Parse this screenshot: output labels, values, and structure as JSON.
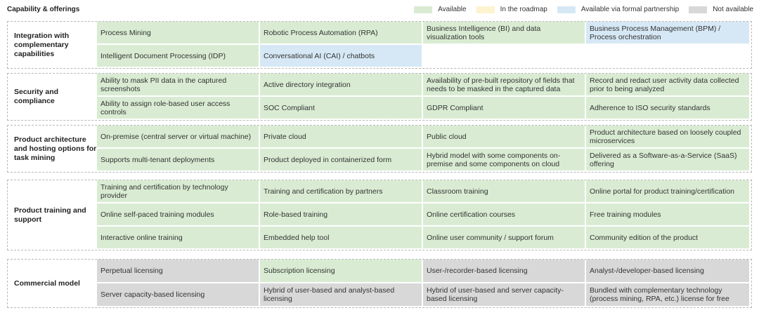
{
  "header": {
    "title": "Capability & offerings",
    "legend": [
      {
        "label": "Available",
        "color": "#d9ecd3"
      },
      {
        "label": "In the roadmap",
        "color": "#fdf3d0"
      },
      {
        "label": "Available via formal partnership",
        "color": "#d6e8f5"
      },
      {
        "label": "Not available",
        "color": "#d8d8d8"
      }
    ]
  },
  "sections": [
    {
      "label": "Integration with complementary capabilities",
      "rows": [
        [
          {
            "text": "Process Mining",
            "status": "green"
          },
          {
            "text": "Robotic Process Automation (RPA)",
            "status": "green"
          },
          {
            "text": "Business Intelligence (BI) and data visualization tools",
            "status": "green"
          },
          {
            "text": "Business Process Management (BPM) / Process orchestration",
            "status": "blue"
          }
        ],
        [
          {
            "text": "Intelligent Document Processing (IDP)",
            "status": "green"
          },
          {
            "text": "Conversational AI (CAI) / chatbots",
            "status": "blue"
          },
          {
            "text": "",
            "status": "empty"
          },
          {
            "text": "",
            "status": "empty"
          }
        ]
      ]
    },
    {
      "label": "Security and compliance",
      "rows": [
        [
          {
            "text": "Ability to mask PII data in the captured screenshots",
            "status": "green"
          },
          {
            "text": "Active directory integration",
            "status": "green"
          },
          {
            "text": "Availability of pre-built repository of fields that needs to be masked in the captured data",
            "status": "green"
          },
          {
            "text": "Record and redact user activity data collected prior to being analyzed",
            "status": "green"
          }
        ],
        [
          {
            "text": "Ability to assign role-based user access controls",
            "status": "green"
          },
          {
            "text": "SOC Compliant",
            "status": "green"
          },
          {
            "text": "GDPR Compliant",
            "status": "green"
          },
          {
            "text": "Adherence to ISO security standards",
            "status": "green"
          }
        ]
      ]
    },
    {
      "label": "Product architecture and hosting options for task mining",
      "rows": [
        [
          {
            "text": "On-premise (central server or virtual machine)",
            "status": "green"
          },
          {
            "text": "Private cloud",
            "status": "green"
          },
          {
            "text": "Public cloud",
            "status": "green"
          },
          {
            "text": "Product architecture based on loosely coupled microservices",
            "status": "green"
          }
        ],
        [
          {
            "text": "Supports multi-tenant deployments",
            "status": "green"
          },
          {
            "text": "Product deployed in containerized form",
            "status": "green"
          },
          {
            "text": "Hybrid model with some components on-premise and some components on cloud",
            "status": "green"
          },
          {
            "text": "Delivered as a Software-as-a-Service (SaaS) offering",
            "status": "green"
          }
        ]
      ]
    },
    {
      "label": "Product training and support",
      "rows": [
        [
          {
            "text": "Training and certification by technology provider",
            "status": "green"
          },
          {
            "text": "Training and certification by partners",
            "status": "green"
          },
          {
            "text": "Classroom training",
            "status": "green"
          },
          {
            "text": "Online portal for product training/certification",
            "status": "green"
          }
        ],
        [
          {
            "text": "Online self-paced training modules",
            "status": "green"
          },
          {
            "text": "Role-based training",
            "status": "green"
          },
          {
            "text": "Online certification courses",
            "status": "green"
          },
          {
            "text": "Free training modules",
            "status": "green"
          }
        ],
        [
          {
            "text": "Interactive online training",
            "status": "green"
          },
          {
            "text": "Embedded help tool",
            "status": "green"
          },
          {
            "text": "Online user community / support forum",
            "status": "green"
          },
          {
            "text": "Community edition of the product",
            "status": "green"
          }
        ]
      ]
    },
    {
      "label": "Commercial model",
      "rows": [
        [
          {
            "text": "Perpetual licensing",
            "status": "grey"
          },
          {
            "text": "Subscription licensing",
            "status": "green"
          },
          {
            "text": "User-/recorder-based licensing",
            "status": "grey"
          },
          {
            "text": "Analyst-/developer-based licensing",
            "status": "grey"
          }
        ],
        [
          {
            "text": "Server capacity-based licensing",
            "status": "grey"
          },
          {
            "text": "Hybrid of user-based and analyst-based licensing",
            "status": "grey"
          },
          {
            "text": "Hybrid of user-based and server capacity-based licensing",
            "status": "grey"
          },
          {
            "text": "Bundled with complementary technology (process mining, RPA, etc.) license for free",
            "status": "grey"
          }
        ]
      ]
    }
  ]
}
